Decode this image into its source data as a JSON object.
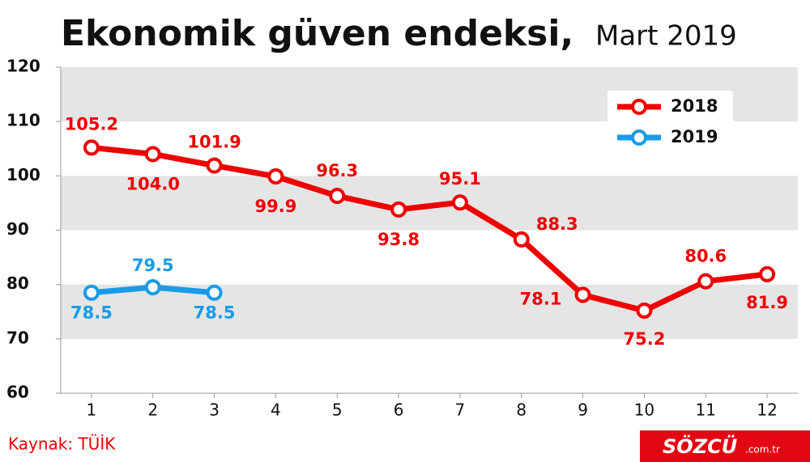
{
  "chart_data": {
    "type": "line",
    "title": "Ekonomik güven endeksi,",
    "subtitle": "Mart 2019",
    "source": "Kaynak: TÜİK",
    "brand": "SÖZCÜ",
    "brand_suffix": ".com.tr",
    "categories": [
      "1",
      "2",
      "3",
      "4",
      "5",
      "6",
      "7",
      "8",
      "9",
      "10",
      "11",
      "12"
    ],
    "series": [
      {
        "name": "2018",
        "color": "#ee0000",
        "values": [
          105.2,
          104.0,
          101.9,
          99.9,
          96.3,
          93.8,
          95.1,
          88.3,
          78.1,
          75.2,
          80.6,
          81.9
        ],
        "value_labels": [
          "105.2",
          "104.0",
          "101.9",
          "99.9",
          "96.3",
          "93.8",
          "95.1",
          "88.3",
          "78.1",
          "75.2",
          "80.6",
          "81.9"
        ]
      },
      {
        "name": "2019",
        "color": "#1a9be6",
        "values": [
          78.5,
          79.5,
          78.5,
          null,
          null,
          null,
          null,
          null,
          null,
          null,
          null,
          null
        ],
        "value_labels": [
          "78.5",
          "79.5",
          "78.5",
          null,
          null,
          null,
          null,
          null,
          null,
          null,
          null,
          null
        ]
      }
    ],
    "ylim": [
      60,
      120
    ],
    "yticks": [
      60,
      70,
      80,
      90,
      100,
      110,
      120
    ],
    "bands": true,
    "legend": "upper right"
  }
}
